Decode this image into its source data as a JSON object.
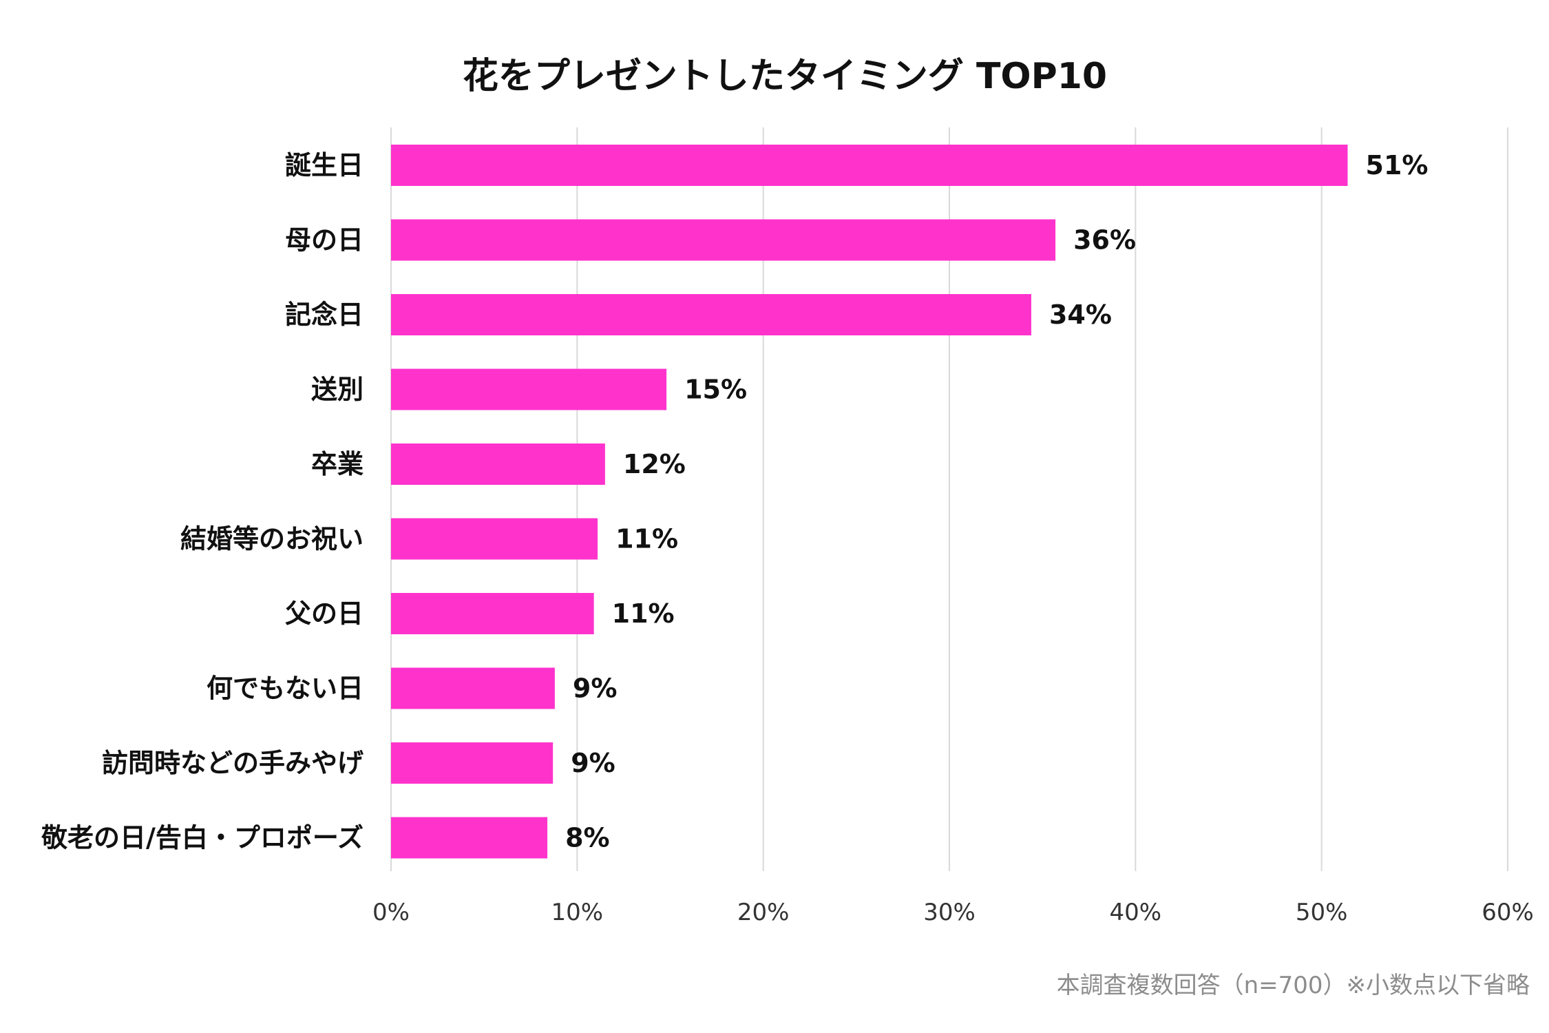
{
  "chart_data": {
    "type": "bar",
    "orientation": "horizontal",
    "title": "花をプレゼントしたタイミング TOP10",
    "categories": [
      "誕生日",
      "母の日",
      "記念日",
      "送別",
      "卒業",
      "結婚等のお祝い",
      "父の日",
      "何でもない日",
      "訪問時などの手みやげ",
      "敬老の日/告白・プロポーズ"
    ],
    "values": [
      51.4,
      35.7,
      34.4,
      14.8,
      11.5,
      11.1,
      10.9,
      8.8,
      8.7,
      8.4
    ],
    "value_labels": [
      "51%",
      "36%",
      "34%",
      "15%",
      "12%",
      "11%",
      "11%",
      "9%",
      "9%",
      "8%"
    ],
    "xlim": [
      0,
      60
    ],
    "xticks": [
      0,
      10,
      20,
      30,
      40,
      50,
      60
    ],
    "xtick_labels": [
      "0%",
      "10%",
      "20%",
      "30%",
      "40%",
      "50%",
      "60%"
    ],
    "xlabel": "",
    "ylabel": "",
    "grid": "vertical",
    "bar_color": "#ff33cc",
    "grid_color": "#d9d9d9",
    "note": "本調査複数回答（n=700）※小数点以下省略"
  }
}
